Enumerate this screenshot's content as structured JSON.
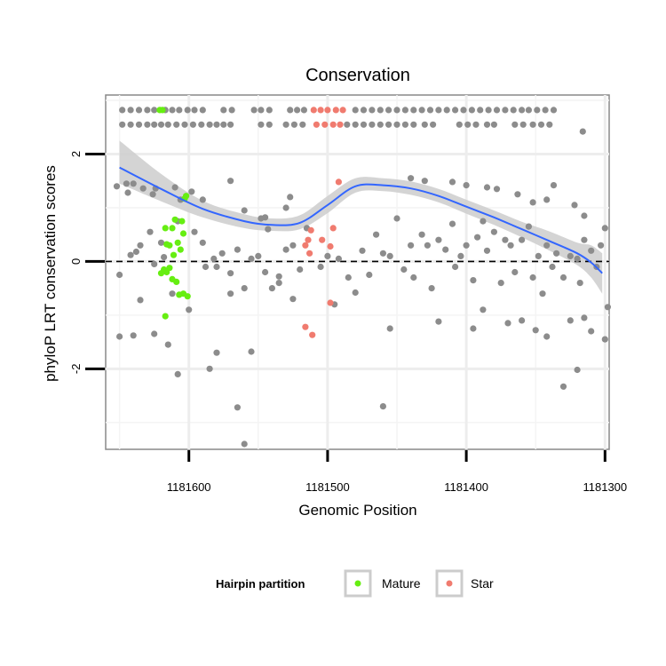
{
  "chart_data": {
    "type": "scatter",
    "title": "Conservation",
    "xlabel": "Genomic Position",
    "ylabel": "phyloP LRT conservation scores",
    "x_reversed": true,
    "xlim": [
      1181660,
      1181297
    ],
    "ylim": [
      -3.5,
      3.1
    ],
    "x_ticks": [
      1181600,
      1181500,
      1181400,
      1181300
    ],
    "x_tick_labels": [
      "1181600",
      "1181500",
      "1181400",
      "1181300"
    ],
    "y_ticks": [
      -2,
      0,
      2
    ],
    "y_tick_labels": [
      "-2",
      "0",
      "2"
    ],
    "grid": true,
    "reference_line": {
      "y": 0,
      "style": "dashed"
    },
    "legend": {
      "title": "Hairpin partition",
      "position": "bottom",
      "entries": [
        {
          "label": "Mature",
          "color": "#66ee11"
        },
        {
          "label": "Star",
          "color": "#f07b6f"
        }
      ]
    },
    "colors": {
      "other": "#8c8c8c",
      "mature": "#66ee11",
      "star": "#f07b6f",
      "smooth": "#3366ff",
      "ribbon": "#cccccc"
    },
    "smooth": {
      "x": [
        1181650,
        1181620,
        1181590,
        1181560,
        1181540,
        1181520,
        1181500,
        1181480,
        1181460,
        1181440,
        1181420,
        1181400,
        1181380,
        1181360,
        1181340,
        1181320,
        1181310,
        1181302
      ],
      "y": [
        1.75,
        1.35,
        0.98,
        0.75,
        0.68,
        0.72,
        1.05,
        1.4,
        1.42,
        1.36,
        1.22,
        1.02,
        0.82,
        0.6,
        0.38,
        0.15,
        -0.02,
        -0.22
      ],
      "ymin": [
        1.45,
        1.12,
        0.82,
        0.62,
        0.57,
        0.6,
        0.9,
        1.28,
        1.31,
        1.24,
        1.1,
        0.89,
        0.68,
        0.45,
        0.2,
        -0.07,
        -0.3,
        -0.6
      ],
      "ymax": [
        2.25,
        1.63,
        1.13,
        0.88,
        0.8,
        0.86,
        1.22,
        1.55,
        1.55,
        1.49,
        1.35,
        1.15,
        0.95,
        0.74,
        0.56,
        0.35,
        0.3,
        0.15
      ]
    },
    "series": [
      {
        "name": "Mature",
        "points": [
          [
            1181621,
            2.82
          ],
          [
            1181619,
            2.82
          ],
          [
            1181602,
            1.22
          ],
          [
            1181603,
            1.17
          ],
          [
            1181610,
            0.78
          ],
          [
            1181605,
            0.75
          ],
          [
            1181612,
            0.62
          ],
          [
            1181617,
            0.62
          ],
          [
            1181604,
            0.52
          ],
          [
            1181608,
            0.35
          ],
          [
            1181616,
            0.32
          ],
          [
            1181614,
            0.3
          ],
          [
            1181606,
            0.22
          ],
          [
            1181611,
            0.12
          ],
          [
            1181618,
            -0.15
          ],
          [
            1181614,
            -0.12
          ],
          [
            1181620,
            -0.22
          ],
          [
            1181616,
            -0.2
          ],
          [
            1181612,
            -0.33
          ],
          [
            1181609,
            -0.38
          ],
          [
            1181604,
            -0.6
          ],
          [
            1181607,
            -0.62
          ],
          [
            1181601,
            -0.65
          ],
          [
            1181617,
            -1.02
          ]
        ]
      },
      {
        "name": "Star",
        "points": [
          [
            1181510,
            2.82
          ],
          [
            1181505,
            2.82
          ],
          [
            1181500,
            2.82
          ],
          [
            1181494,
            2.82
          ],
          [
            1181489,
            2.82
          ],
          [
            1181508,
            2.55
          ],
          [
            1181502,
            2.55
          ],
          [
            1181496,
            2.55
          ],
          [
            1181491,
            2.55
          ],
          [
            1181492,
            1.48
          ],
          [
            1181512,
            0.58
          ],
          [
            1181496,
            0.62
          ],
          [
            1181514,
            0.4
          ],
          [
            1181498,
            0.28
          ],
          [
            1181516,
            0.3
          ],
          [
            1181513,
            0.15
          ],
          [
            1181504,
            0.4
          ],
          [
            1181498,
            -0.77
          ],
          [
            1181516,
            -1.22
          ],
          [
            1181511,
            -1.37
          ]
        ]
      },
      {
        "name": "",
        "points": [
          [
            1181648,
            2.82
          ],
          [
            1181642,
            2.82
          ],
          [
            1181636,
            2.82
          ],
          [
            1181630,
            2.82
          ],
          [
            1181625,
            2.82
          ],
          [
            1181617,
            2.82
          ],
          [
            1181612,
            2.82
          ],
          [
            1181607,
            2.82
          ],
          [
            1181601,
            2.82
          ],
          [
            1181596,
            2.82
          ],
          [
            1181590,
            2.82
          ],
          [
            1181575,
            2.82
          ],
          [
            1181569,
            2.82
          ],
          [
            1181553,
            2.82
          ],
          [
            1181548,
            2.82
          ],
          [
            1181542,
            2.82
          ],
          [
            1181527,
            2.82
          ],
          [
            1181522,
            2.82
          ],
          [
            1181517,
            2.82
          ],
          [
            1181480,
            2.82
          ],
          [
            1181474,
            2.82
          ],
          [
            1181468,
            2.82
          ],
          [
            1181462,
            2.82
          ],
          [
            1181456,
            2.82
          ],
          [
            1181450,
            2.82
          ],
          [
            1181444,
            2.82
          ],
          [
            1181438,
            2.82
          ],
          [
            1181432,
            2.82
          ],
          [
            1181426,
            2.82
          ],
          [
            1181420,
            2.82
          ],
          [
            1181414,
            2.82
          ],
          [
            1181408,
            2.82
          ],
          [
            1181402,
            2.82
          ],
          [
            1181396,
            2.82
          ],
          [
            1181390,
            2.82
          ],
          [
            1181384,
            2.82
          ],
          [
            1181378,
            2.82
          ],
          [
            1181372,
            2.82
          ],
          [
            1181366,
            2.82
          ],
          [
            1181360,
            2.82
          ],
          [
            1181355,
            2.82
          ],
          [
            1181349,
            2.82
          ],
          [
            1181343,
            2.82
          ],
          [
            1181337,
            2.82
          ],
          [
            1181648,
            2.55
          ],
          [
            1181642,
            2.55
          ],
          [
            1181636,
            2.55
          ],
          [
            1181630,
            2.55
          ],
          [
            1181625,
            2.55
          ],
          [
            1181620,
            2.55
          ],
          [
            1181615,
            2.55
          ],
          [
            1181609,
            2.55
          ],
          [
            1181603,
            2.55
          ],
          [
            1181597,
            2.55
          ],
          [
            1181591,
            2.55
          ],
          [
            1181585,
            2.55
          ],
          [
            1181580,
            2.55
          ],
          [
            1181575,
            2.55
          ],
          [
            1181570,
            2.55
          ],
          [
            1181548,
            2.55
          ],
          [
            1181542,
            2.55
          ],
          [
            1181530,
            2.55
          ],
          [
            1181524,
            2.55
          ],
          [
            1181518,
            2.55
          ],
          [
            1181486,
            2.55
          ],
          [
            1181480,
            2.55
          ],
          [
            1181474,
            2.55
          ],
          [
            1181468,
            2.55
          ],
          [
            1181462,
            2.55
          ],
          [
            1181456,
            2.55
          ],
          [
            1181450,
            2.55
          ],
          [
            1181444,
            2.55
          ],
          [
            1181438,
            2.55
          ],
          [
            1181430,
            2.55
          ],
          [
            1181424,
            2.55
          ],
          [
            1181405,
            2.55
          ],
          [
            1181399,
            2.55
          ],
          [
            1181393,
            2.55
          ],
          [
            1181385,
            2.55
          ],
          [
            1181380,
            2.55
          ],
          [
            1181365,
            2.55
          ],
          [
            1181359,
            2.55
          ],
          [
            1181352,
            2.55
          ],
          [
            1181346,
            2.55
          ],
          [
            1181340,
            2.55
          ],
          [
            1181652,
            1.4
          ],
          [
            1181644,
            1.28
          ],
          [
            1181645,
            1.45
          ],
          [
            1181640,
            1.45
          ],
          [
            1181633,
            1.36
          ],
          [
            1181626,
            1.25
          ],
          [
            1181624,
            1.36
          ],
          [
            1181610,
            1.38
          ],
          [
            1181598,
            1.3
          ],
          [
            1181590,
            1.15
          ],
          [
            1181570,
            1.5
          ],
          [
            1181560,
            0.95
          ],
          [
            1181548,
            0.8
          ],
          [
            1181545,
            0.82
          ],
          [
            1181530,
            1.0
          ],
          [
            1181527,
            1.2
          ],
          [
            1181440,
            1.55
          ],
          [
            1181430,
            1.5
          ],
          [
            1181410,
            1.48
          ],
          [
            1181400,
            1.42
          ],
          [
            1181385,
            1.38
          ],
          [
            1181378,
            1.35
          ],
          [
            1181363,
            1.25
          ],
          [
            1181352,
            1.1
          ],
          [
            1181342,
            1.15
          ],
          [
            1181337,
            1.42
          ],
          [
            1181316,
            2.42
          ],
          [
            1181322,
            1.05
          ],
          [
            1181315,
            0.85
          ],
          [
            1181300,
            0.62
          ],
          [
            1181650,
            -0.25
          ],
          [
            1181642,
            0.12
          ],
          [
            1181638,
            0.18
          ],
          [
            1181635,
            0.3
          ],
          [
            1181628,
            0.55
          ],
          [
            1181625,
            -0.05
          ],
          [
            1181620,
            0.35
          ],
          [
            1181618,
            0.08
          ],
          [
            1181612,
            -0.6
          ],
          [
            1181608,
            0.75
          ],
          [
            1181606,
            1.15
          ],
          [
            1181596,
            0.55
          ],
          [
            1181590,
            0.35
          ],
          [
            1181588,
            -0.1
          ],
          [
            1181582,
            0.05
          ],
          [
            1181576,
            0.15
          ],
          [
            1181570,
            -0.22
          ],
          [
            1181565,
            0.22
          ],
          [
            1181560,
            -0.5
          ],
          [
            1181555,
            0.05
          ],
          [
            1181550,
            0.1
          ],
          [
            1181545,
            -0.2
          ],
          [
            1181543,
            0.6
          ],
          [
            1181540,
            -0.5
          ],
          [
            1181535,
            -0.28
          ],
          [
            1181530,
            0.22
          ],
          [
            1181525,
            0.3
          ],
          [
            1181520,
            -0.15
          ],
          [
            1181515,
            0.62
          ],
          [
            1181505,
            -0.1
          ],
          [
            1181500,
            0.1
          ],
          [
            1181495,
            -0.8
          ],
          [
            1181492,
            0.05
          ],
          [
            1181485,
            -0.3
          ],
          [
            1181480,
            -0.58
          ],
          [
            1181475,
            0.2
          ],
          [
            1181470,
            -0.25
          ],
          [
            1181465,
            0.5
          ],
          [
            1181460,
            0.15
          ],
          [
            1181455,
            0.1
          ],
          [
            1181450,
            0.8
          ],
          [
            1181445,
            -0.15
          ],
          [
            1181440,
            0.3
          ],
          [
            1181438,
            -0.3
          ],
          [
            1181432,
            0.5
          ],
          [
            1181428,
            0.3
          ],
          [
            1181425,
            -0.5
          ],
          [
            1181420,
            0.4
          ],
          [
            1181415,
            0.22
          ],
          [
            1181410,
            0.7
          ],
          [
            1181408,
            -0.1
          ],
          [
            1181404,
            0.1
          ],
          [
            1181400,
            0.3
          ],
          [
            1181395,
            -0.35
          ],
          [
            1181392,
            0.45
          ],
          [
            1181388,
            0.75
          ],
          [
            1181385,
            0.2
          ],
          [
            1181380,
            0.55
          ],
          [
            1181375,
            -0.4
          ],
          [
            1181372,
            0.4
          ],
          [
            1181368,
            0.3
          ],
          [
            1181365,
            -0.2
          ],
          [
            1181360,
            0.4
          ],
          [
            1181355,
            0.65
          ],
          [
            1181352,
            -0.3
          ],
          [
            1181348,
            0.1
          ],
          [
            1181345,
            -0.6
          ],
          [
            1181342,
            0.3
          ],
          [
            1181338,
            -0.1
          ],
          [
            1181335,
            0.15
          ],
          [
            1181330,
            -0.3
          ],
          [
            1181325,
            0.1
          ],
          [
            1181320,
            0.05
          ],
          [
            1181318,
            -0.4
          ],
          [
            1181315,
            0.4
          ],
          [
            1181310,
            0.2
          ],
          [
            1181306,
            -0.1
          ],
          [
            1181303,
            0.3
          ],
          [
            1181298,
            -0.85
          ],
          [
            1181650,
            -1.4
          ],
          [
            1181640,
            -1.38
          ],
          [
            1181635,
            -0.72
          ],
          [
            1181625,
            -1.35
          ],
          [
            1181615,
            -1.55
          ],
          [
            1181608,
            -2.1
          ],
          [
            1181600,
            -0.9
          ],
          [
            1181585,
            -2.0
          ],
          [
            1181580,
            -1.7
          ],
          [
            1181565,
            -2.72
          ],
          [
            1181560,
            -3.4
          ],
          [
            1181555,
            -1.68
          ],
          [
            1181535,
            -0.4
          ],
          [
            1181525,
            -0.7
          ],
          [
            1181460,
            -2.7
          ],
          [
            1181455,
            -1.25
          ],
          [
            1181420,
            -1.12
          ],
          [
            1181395,
            -1.25
          ],
          [
            1181388,
            -0.9
          ],
          [
            1181370,
            -1.15
          ],
          [
            1181360,
            -1.1
          ],
          [
            1181350,
            -1.28
          ],
          [
            1181342,
            -1.4
          ],
          [
            1181330,
            -2.33
          ],
          [
            1181325,
            -1.1
          ],
          [
            1181315,
            -1.05
          ],
          [
            1181310,
            -1.3
          ],
          [
            1181300,
            -1.45
          ],
          [
            1181320,
            -2.02
          ],
          [
            1181580,
            -0.1
          ],
          [
            1181570,
            -0.6
          ]
        ]
      }
    ]
  }
}
